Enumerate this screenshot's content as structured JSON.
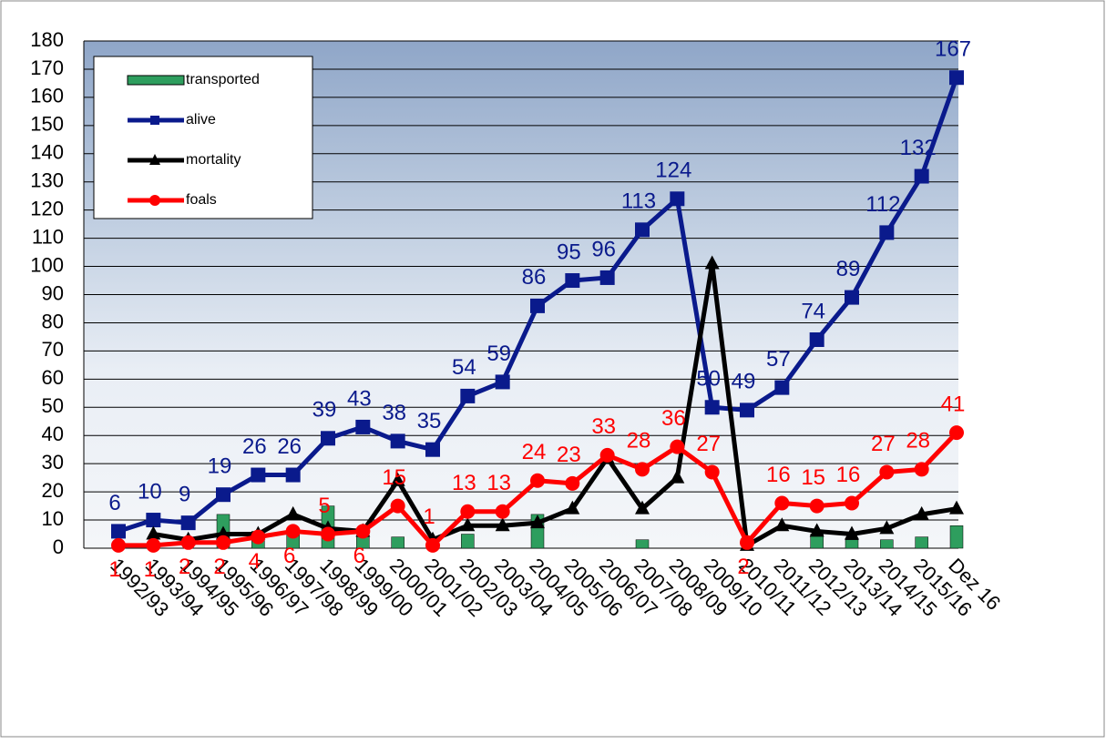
{
  "chart_data": {
    "type": "line",
    "categories": [
      "1992/93",
      "1993/94",
      "1994/95",
      "1995/96",
      "1996/97",
      "1997/98",
      "1998/99",
      "1999/00",
      "2000/01",
      "2001/02",
      "2002/03",
      "2003/04",
      "2004/05",
      "2005/06",
      "2006/07",
      "2007/08",
      "2008/09",
      "2009/10",
      "2010/11",
      "2011/12",
      "2012/13",
      "2013/14",
      "2014/15",
      "2015/16",
      "Dez 16"
    ],
    "series": [
      {
        "name": "transported",
        "kind": "bar",
        "color": "#2e9e5e",
        "values": [
          null,
          null,
          null,
          12,
          6,
          6,
          15,
          4,
          4,
          null,
          5,
          null,
          12,
          null,
          null,
          3,
          null,
          null,
          null,
          null,
          5,
          3,
          3,
          4,
          8
        ]
      },
      {
        "name": "alive",
        "kind": "line",
        "marker": "square",
        "color": "#0a1a8c",
        "values": [
          6,
          10,
          9,
          19,
          26,
          26,
          39,
          43,
          38,
          35,
          54,
          59,
          86,
          95,
          96,
          113,
          124,
          50,
          49,
          57,
          74,
          89,
          112,
          132,
          167
        ],
        "labels": true
      },
      {
        "name": "mortality",
        "kind": "line",
        "marker": "triangle",
        "color": "#000000",
        "values": [
          null,
          5,
          3,
          5,
          5,
          12,
          7,
          6,
          24,
          3,
          8,
          8,
          9,
          14,
          32,
          14,
          25,
          101,
          1,
          8,
          6,
          5,
          7,
          12,
          14
        ]
      },
      {
        "name": "foals",
        "kind": "line",
        "marker": "circle",
        "color": "#ff0000",
        "values": [
          1,
          1,
          2,
          2,
          4,
          6,
          5,
          6,
          15,
          1,
          13,
          13,
          24,
          23,
          33,
          28,
          36,
          27,
          2,
          16,
          15,
          16,
          27,
          28,
          41
        ],
        "labels": true
      }
    ],
    "ylim": [
      0,
      180
    ],
    "yticks": [
      0,
      10,
      20,
      30,
      40,
      50,
      60,
      70,
      80,
      90,
      100,
      110,
      120,
      130,
      140,
      150,
      160,
      170,
      180
    ],
    "grid": true
  }
}
